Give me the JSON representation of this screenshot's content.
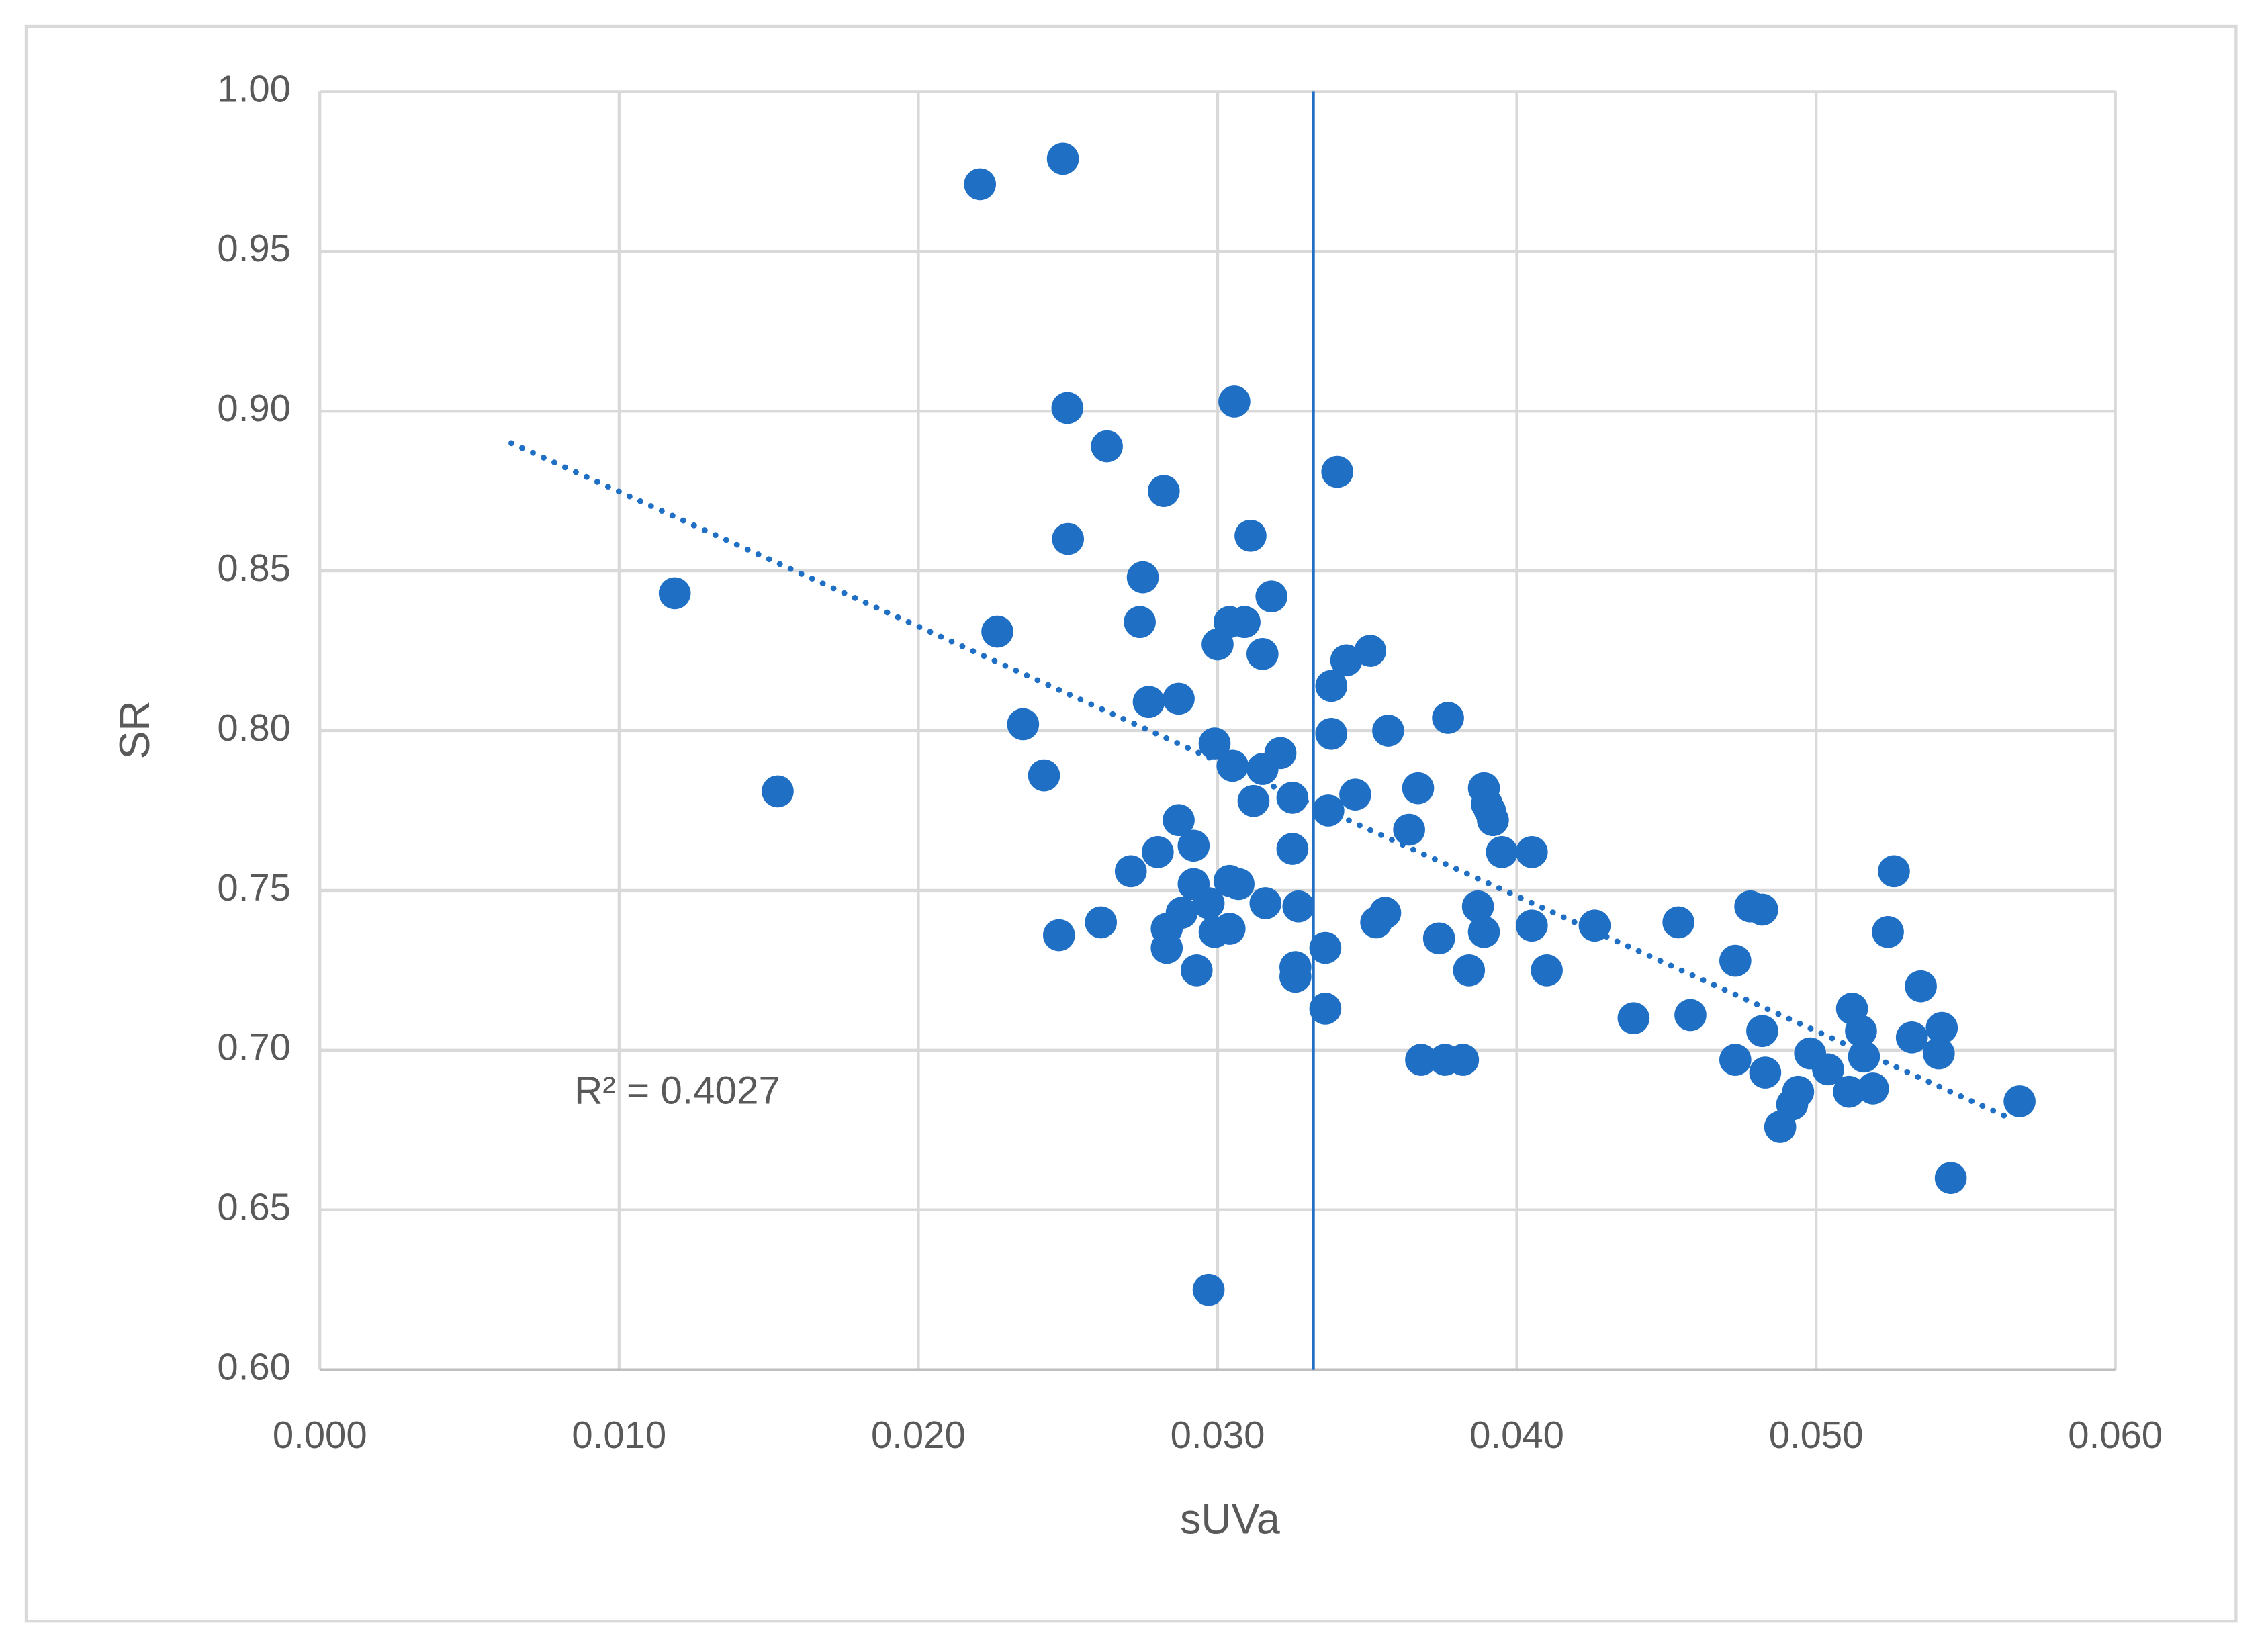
{
  "chart_data": {
    "type": "scatter",
    "xlabel": "sUVa",
    "ylabel": "SR",
    "x": [
      0.02206,
      0.02483,
      0.02498,
      0.0263,
      0.0282,
      0.025,
      0.01186,
      0.02264,
      0.0275,
      0.0274,
      0.03056,
      0.034,
      0.0311,
      0.0318,
      0.0304,
      0.0309,
      0.03,
      0.0315,
      0.0351,
      0.0343,
      0.0338,
      0.0235,
      0.0277,
      0.0287,
      0.0242,
      0.0153,
      0.0299,
      0.0305,
      0.0315,
      0.0321,
      0.0338,
      0.0357,
      0.0377,
      0.0312,
      0.0325,
      0.0337,
      0.0346,
      0.0367,
      0.0364,
      0.0389,
      0.039,
      0.0391,
      0.0392,
      0.0395,
      0.0405,
      0.0287,
      0.0292,
      0.028,
      0.0271,
      0.0325,
      0.0292,
      0.0304,
      0.0307,
      0.0297,
      0.0288,
      0.0316,
      0.0327,
      0.0283,
      0.0304,
      0.0299,
      0.0261,
      0.0247,
      0.0283,
      0.0293,
      0.0326,
      0.0326,
      0.0336,
      0.0336,
      0.0353,
      0.0356,
      0.0374,
      0.0387,
      0.0389,
      0.0384,
      0.0405,
      0.041,
      0.0426,
      0.0368,
      0.0376,
      0.0382,
      0.0439,
      0.0454,
      0.0458,
      0.0478,
      0.0482,
      0.0473,
      0.0473,
      0.0482,
      0.0483,
      0.0488,
      0.0492,
      0.0494,
      0.0498,
      0.0504,
      0.0512,
      0.0515,
      0.0516,
      0.0511,
      0.0519,
      0.0524,
      0.0526,
      0.0532,
      0.0535,
      0.0542,
      0.0541,
      0.0545,
      0.0568,
      0.0297
    ],
    "values": [
      0.971,
      0.979,
      0.901,
      0.889,
      0.875,
      0.86,
      0.843,
      0.831,
      0.848,
      0.834,
      0.903,
      0.881,
      0.861,
      0.842,
      0.834,
      0.834,
      0.827,
      0.824,
      0.825,
      0.822,
      0.814,
      0.802,
      0.809,
      0.81,
      0.786,
      0.781,
      0.796,
      0.789,
      0.788,
      0.793,
      0.799,
      0.8,
      0.804,
      0.778,
      0.779,
      0.775,
      0.78,
      0.782,
      0.769,
      0.782,
      0.777,
      0.775,
      0.772,
      0.762,
      0.762,
      0.772,
      0.764,
      0.762,
      0.756,
      0.763,
      0.752,
      0.753,
      0.752,
      0.746,
      0.743,
      0.746,
      0.745,
      0.738,
      0.738,
      0.737,
      0.74,
      0.736,
      0.732,
      0.725,
      0.726,
      0.723,
      0.732,
      0.713,
      0.74,
      0.743,
      0.735,
      0.745,
      0.737,
      0.725,
      0.739,
      0.725,
      0.739,
      0.697,
      0.697,
      0.697,
      0.71,
      0.74,
      0.711,
      0.745,
      0.744,
      0.728,
      0.697,
      0.706,
      0.693,
      0.676,
      0.683,
      0.687,
      0.699,
      0.694,
      0.713,
      0.706,
      0.698,
      0.687,
      0.688,
      0.737,
      0.756,
      0.704,
      0.72,
      0.707,
      0.699,
      0.66,
      0.684,
      0.625
    ],
    "color": "#1f6fc5",
    "trendline": {
      "x": [
        0.0064,
        0.0564
      ],
      "values": [
        0.89,
        0.679
      ],
      "color": "#1f6fc5"
    },
    "vline": {
      "x": 0.0332,
      "color": "#1f6fc5"
    },
    "annotation": "R² = 0.4027",
    "xlim": [
      0,
      0.06
    ],
    "xticks": [
      {
        "value": 0,
        "label": "0.000"
      },
      {
        "value": 0.01,
        "label": "0.010"
      },
      {
        "value": 0.02,
        "label": "0.020"
      },
      {
        "value": 0.03,
        "label": "0.030"
      },
      {
        "value": 0.04,
        "label": "0.040"
      },
      {
        "value": 0.05,
        "label": "0.050"
      },
      {
        "value": 0.06,
        "label": "0.060"
      }
    ],
    "ylim": [
      0.6,
      1.0
    ],
    "yticks": [
      {
        "value": 0.6,
        "label": "0.60"
      },
      0.65,
      {
        "value": 0.7,
        "label": "0.70"
      },
      0.75,
      {
        "value": 0.8,
        "label": "0.80"
      },
      0.85,
      {
        "value": 0.9,
        "label": "0.90"
      },
      0.95,
      {
        "value": 1.0,
        "label": "1.00"
      }
    ],
    "grid": true
  }
}
